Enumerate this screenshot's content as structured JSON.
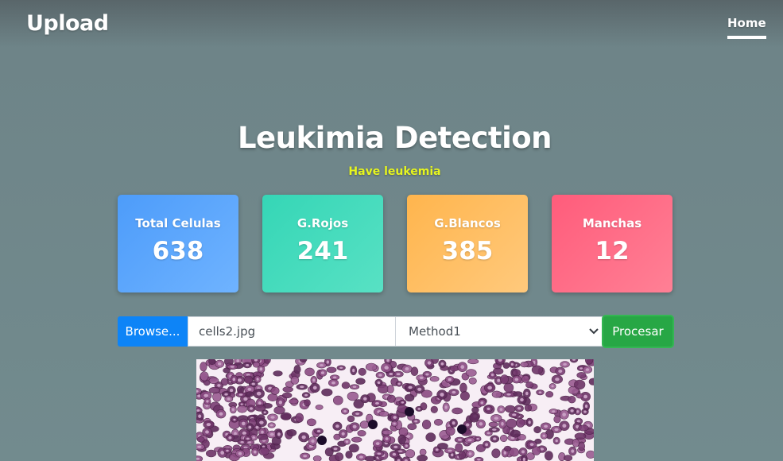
{
  "navbar": {
    "brand": "Upload",
    "home_link": "Home"
  },
  "main": {
    "title": "Leukimia Detection",
    "result": "Have leukemia",
    "result_color": "#e6f51f",
    "stats": [
      {
        "label": "Total Celulas",
        "value": "638",
        "color": "#4d9cfa"
      },
      {
        "label": "G.Rojos",
        "value": "241",
        "color": "#35d6b6"
      },
      {
        "label": "G.Blancos",
        "value": "385",
        "color": "#ffb54d"
      },
      {
        "label": "Manchas",
        "value": "12",
        "color": "#ff5c7b"
      }
    ]
  },
  "form": {
    "browse_label": "Browse...",
    "file_name": "cells2.jpg",
    "method_selected": "Method1",
    "process_label": "Procesar"
  },
  "icons": {
    "select_arrow": "chevron-down-icon"
  }
}
